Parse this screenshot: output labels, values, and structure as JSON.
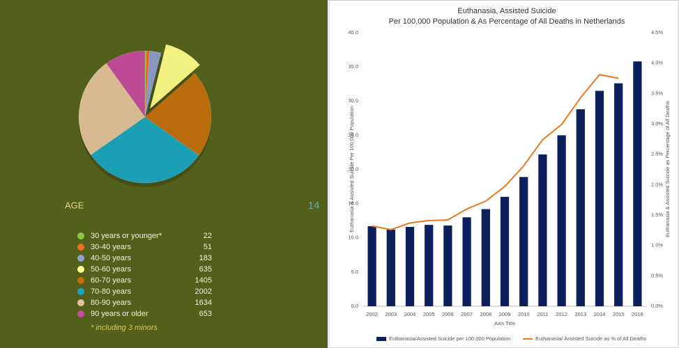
{
  "chart_data": [
    {
      "type": "pie",
      "annotations": [
        "AGE",
        "14",
        "* including 3 minors"
      ],
      "categories": [
        "30 years or younger*",
        "30-40 years",
        "40-50 years",
        "50-60 years",
        "60-70 years",
        "70-80 years",
        "80-90 years",
        "90 years or older"
      ],
      "values": [
        22,
        51,
        183,
        635,
        1405,
        2002,
        1634,
        653
      ],
      "colors": [
        "#8dc63f",
        "#f26b21",
        "#8f9fcf",
        "#ffff8a",
        "#c46f0c",
        "#17a6c2",
        "#e6c29c",
        "#c64a9f"
      ],
      "exploded": "50-60 years"
    },
    {
      "type": "combo",
      "title": [
        "Euthanasia, Assisted Suicide",
        "Per 100,000 Population & As Percentage of All Deaths in Netherlands"
      ],
      "xlabel": "Axis Title",
      "ylabel": "Euthanasia & Assisted Suicide Per 100,000 Population",
      "y2label": "Euthanasia & Assisted Suicide as Percentage of All Deaths",
      "categories": [
        "2002",
        "2003",
        "2004",
        "2005",
        "2006",
        "2007",
        "2008",
        "2009",
        "2010",
        "2011",
        "2012",
        "2013",
        "2014",
        "2015",
        "2016"
      ],
      "series": [
        {
          "name": "Euthanasia/Assisted Suicide per 100,000 Population",
          "type": "bar",
          "color": "#0c1f5c",
          "values": [
            11.7,
            11.2,
            11.6,
            11.9,
            11.8,
            13.0,
            14.2,
            16.0,
            18.9,
            22.2,
            25.0,
            28.8,
            31.5,
            32.6,
            35.8
          ]
        },
        {
          "name": "Euthanasia/ Assisted Suicide as % of All Deaths",
          "type": "line",
          "color": "#e87722",
          "axis": "y2",
          "values": [
            1.32,
            1.26,
            1.37,
            1.41,
            1.42,
            1.6,
            1.73,
            1.97,
            2.31,
            2.74,
            2.99,
            3.43,
            3.81,
            3.75,
            null
          ]
        }
      ],
      "ylim": [
        0,
        40
      ],
      "yticks": [
        {
          "value": 0,
          "label": "0.0"
        },
        {
          "value": 5,
          "label": "5.0"
        },
        {
          "value": 10,
          "label": "10.0"
        },
        {
          "value": 15,
          "label": "15.0"
        },
        {
          "value": 20,
          "label": "20.0"
        },
        {
          "value": 25,
          "label": "25.0"
        },
        {
          "value": 30,
          "label": "30.0"
        },
        {
          "value": 35,
          "label": "35.0"
        },
        {
          "value": 40,
          "label": "40.0"
        }
      ],
      "y2lim": [
        0,
        4.5
      ],
      "y2ticks": [
        {
          "value": 0,
          "label": "0.0%"
        },
        {
          "value": 0.5,
          "label": "0.5%"
        },
        {
          "value": 1,
          "label": "1.0%"
        },
        {
          "value": 1.5,
          "label": "1.5%"
        },
        {
          "value": 2,
          "label": "2.0%"
        },
        {
          "value": 2.5,
          "label": "2.5%"
        },
        {
          "value": 3,
          "label": "3.0%"
        },
        {
          "value": 3.5,
          "label": "3.5%"
        },
        {
          "value": 4,
          "label": "4.0%"
        },
        {
          "value": 4.5,
          "label": "4.5%"
        }
      ],
      "grid": false
    }
  ]
}
